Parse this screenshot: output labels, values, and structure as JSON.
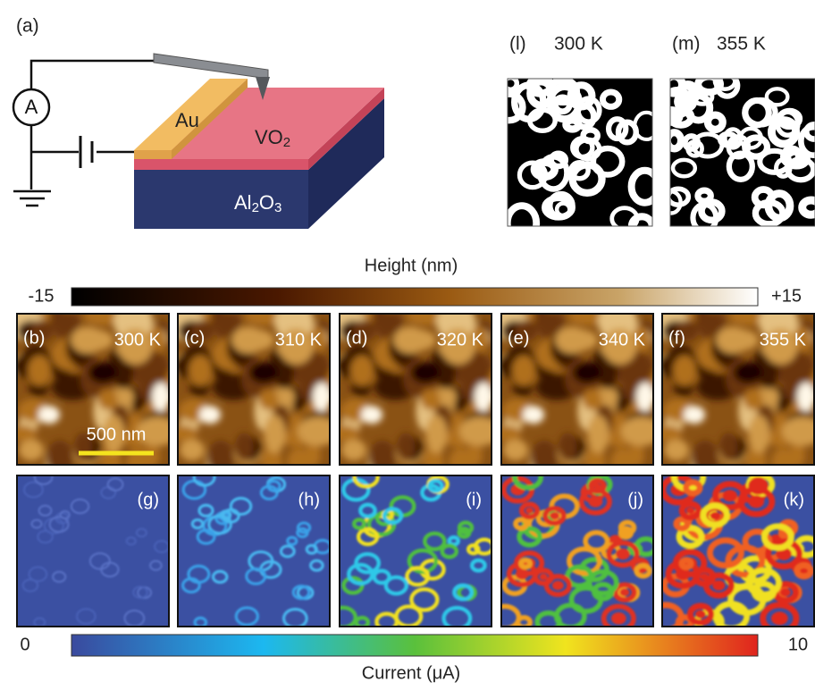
{
  "schematic": {
    "label": "(a)",
    "meter": "A",
    "electrode": "Au",
    "film": {
      "text": "VO",
      "sub": "2"
    },
    "substrate": {
      "parts": [
        "Al",
        "2",
        "O",
        "3"
      ]
    }
  },
  "binary_maps": [
    {
      "label": "(l)",
      "temperature": "300 K"
    },
    {
      "label": "(m)",
      "temperature": "355 K"
    }
  ],
  "height_colorbar": {
    "title": "Height (nm)",
    "min": "-15",
    "max": "+15"
  },
  "height_maps": [
    {
      "label": "(b)",
      "temperature": "300 K"
    },
    {
      "label": "(c)",
      "temperature": "310 K"
    },
    {
      "label": "(d)",
      "temperature": "320 K"
    },
    {
      "label": "(e)",
      "temperature": "340 K"
    },
    {
      "label": "(f)",
      "temperature": "355 K"
    }
  ],
  "scale_bar": "500 nm",
  "current_maps": [
    {
      "label": "(g)"
    },
    {
      "label": "(h)"
    },
    {
      "label": "(i)"
    },
    {
      "label": "(j)"
    },
    {
      "label": "(k)"
    }
  ],
  "current_colorbar": {
    "title": "Current (μA)",
    "min": "0",
    "max": "10"
  }
}
